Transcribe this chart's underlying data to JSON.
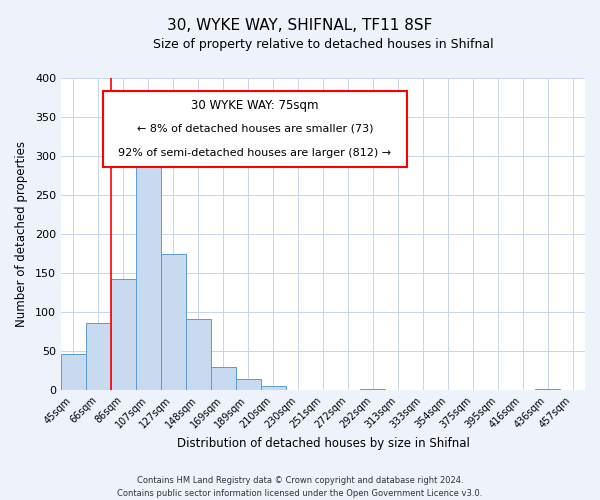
{
  "title": "30, WYKE WAY, SHIFNAL, TF11 8SF",
  "subtitle": "Size of property relative to detached houses in Shifnal",
  "xlabel": "Distribution of detached houses by size in Shifnal",
  "ylabel": "Number of detached properties",
  "bar_labels": [
    "45sqm",
    "66sqm",
    "86sqm",
    "107sqm",
    "127sqm",
    "148sqm",
    "169sqm",
    "189sqm",
    "210sqm",
    "230sqm",
    "251sqm",
    "272sqm",
    "292sqm",
    "313sqm",
    "333sqm",
    "354sqm",
    "375sqm",
    "395sqm",
    "416sqm",
    "436sqm",
    "457sqm"
  ],
  "bar_values": [
    47,
    86,
    143,
    295,
    175,
    91,
    30,
    14,
    5,
    0,
    0,
    0,
    2,
    0,
    0,
    0,
    0,
    0,
    0,
    2,
    0
  ],
  "bar_color": "#c8daf0",
  "bar_edge_color": "#5b9bd5",
  "ylim": [
    0,
    400
  ],
  "yticks": [
    0,
    50,
    100,
    150,
    200,
    250,
    300,
    350,
    400
  ],
  "red_line_x": 1.5,
  "annotation_text_line1": "30 WYKE WAY: 75sqm",
  "annotation_text_line2": "← 8% of detached houses are smaller (73)",
  "annotation_text_line3": "92% of semi-detached houses are larger (812) →",
  "footer_line1": "Contains HM Land Registry data © Crown copyright and database right 2024.",
  "footer_line2": "Contains public sector information licensed under the Open Government Licence v3.0.",
  "background_color": "#eef2fa",
  "plot_bg_color": "#ffffff",
  "grid_color": "#c8d4e8"
}
